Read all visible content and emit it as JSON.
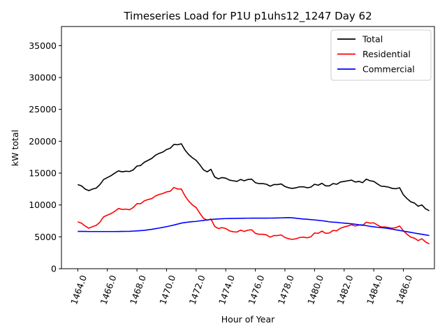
{
  "chart_data": {
    "type": "line",
    "title": "Timeseries Load for P1U p1uhs12_1247  Day 62",
    "xlabel": "Hour of Year",
    "ylabel": "kW total",
    "xlim": [
      1462.9,
      1488.1
    ],
    "ylim": [
      0,
      38000
    ],
    "xticks": [
      1464,
      1466,
      1468,
      1470,
      1472,
      1474,
      1476,
      1478,
      1480,
      1482,
      1484,
      1486
    ],
    "xtick_labels": [
      "1464.0",
      "1466.0",
      "1468.0",
      "1470.0",
      "1472.0",
      "1474.0",
      "1476.0",
      "1478.0",
      "1480.0",
      "1482.0",
      "1484.0",
      "1486.0"
    ],
    "yticks": [
      0,
      5000,
      10000,
      15000,
      20000,
      25000,
      30000,
      35000
    ],
    "ytick_labels": [
      "0",
      "5000",
      "10000",
      "15000",
      "20000",
      "25000",
      "30000",
      "35000"
    ],
    "legend_position": "top-right",
    "x_start": 1464.0,
    "x_step": 0.25,
    "series": [
      {
        "name": "Total",
        "color": "#000000",
        "values": [
          13200,
          13000,
          12500,
          12250,
          12500,
          12650,
          13200,
          14000,
          14300,
          14600,
          15000,
          15350,
          15200,
          15300,
          15250,
          15500,
          16100,
          16200,
          16700,
          17000,
          17300,
          17800,
          18100,
          18300,
          18700,
          18900,
          19500,
          19450,
          19600,
          18600,
          17900,
          17400,
          17000,
          16300,
          15500,
          15200,
          15600,
          14400,
          14100,
          14300,
          14200,
          13900,
          13800,
          13700,
          14000,
          13800,
          14000,
          14050,
          13500,
          13350,
          13350,
          13250,
          12950,
          13200,
          13200,
          13300,
          12900,
          12700,
          12600,
          12700,
          12850,
          12850,
          12700,
          12800,
          13250,
          13100,
          13400,
          13000,
          13000,
          13350,
          13250,
          13600,
          13700,
          13800,
          13900,
          13600,
          13700,
          13500,
          14050,
          13800,
          13700,
          13300,
          12950,
          12900,
          12800,
          12600,
          12550,
          12700,
          11600,
          11000,
          10500,
          10300,
          9800,
          10000,
          9400,
          9100
        ]
      },
      {
        "name": "Residential",
        "color": "#ff0000",
        "values": [
          7350,
          7150,
          6700,
          6350,
          6600,
          6800,
          7300,
          8150,
          8400,
          8650,
          9000,
          9450,
          9300,
          9350,
          9250,
          9600,
          10200,
          10200,
          10650,
          10850,
          11000,
          11400,
          11650,
          11800,
          12050,
          12150,
          12750,
          12500,
          12500,
          11400,
          10600,
          10000,
          9600,
          8700,
          7900,
          7600,
          7800,
          6650,
          6300,
          6450,
          6300,
          5950,
          5800,
          5750,
          6050,
          5850,
          6050,
          6100,
          5550,
          5400,
          5400,
          5300,
          4950,
          5200,
          5200,
          5300,
          4900,
          4700,
          4600,
          4700,
          4900,
          4950,
          4850,
          5000,
          5600,
          5550,
          5900,
          5550,
          5600,
          6000,
          5950,
          6350,
          6550,
          6700,
          6900,
          6700,
          6850,
          6800,
          7300,
          7150,
          7200,
          6850,
          6550,
          6550,
          6450,
          6350,
          6450,
          6700,
          5950,
          5400,
          4950,
          4800,
          4400,
          4700,
          4200,
          3900
        ]
      },
      {
        "name": "Commercial",
        "color": "#0000ff",
        "values": [
          5850,
          5850,
          5850,
          5830,
          5830,
          5830,
          5830,
          5830,
          5830,
          5830,
          5830,
          5840,
          5850,
          5860,
          5870,
          5900,
          5930,
          5970,
          6020,
          6100,
          6180,
          6280,
          6380,
          6480,
          6600,
          6720,
          6850,
          7000,
          7150,
          7250,
          7320,
          7390,
          7420,
          7500,
          7580,
          7650,
          7720,
          7770,
          7810,
          7840,
          7870,
          7880,
          7890,
          7900,
          7910,
          7920,
          7925,
          7930,
          7930,
          7930,
          7930,
          7935,
          7940,
          7950,
          7960,
          7980,
          8000,
          8010,
          7990,
          7920,
          7850,
          7800,
          7750,
          7700,
          7650,
          7590,
          7530,
          7450,
          7350,
          7300,
          7280,
          7200,
          7150,
          7100,
          7050,
          6980,
          6900,
          6850,
          6750,
          6650,
          6580,
          6500,
          6440,
          6380,
          6300,
          6200,
          6100,
          6000,
          5900,
          5800,
          5700,
          5600,
          5500,
          5400,
          5300,
          5200
        ]
      }
    ]
  }
}
